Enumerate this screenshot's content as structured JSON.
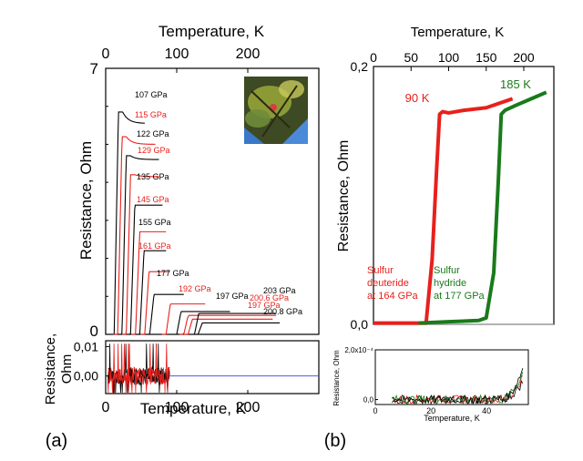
{
  "colors": {
    "black": "#000000",
    "red": "#e8201c",
    "green": "#1a7a1a",
    "blue": "#4a5fd8",
    "axis": "#000000"
  },
  "panel_labels": [
    "(a)",
    "(b)"
  ],
  "chart_data": [
    {
      "id": "a-main",
      "type": "line",
      "title": "",
      "xlabel": "Temperature, K",
      "ylabel": "Resistance, Ohm",
      "xlim": [
        0,
        300
      ],
      "ylim": [
        0,
        7
      ],
      "x_ticks": [
        0,
        100,
        200
      ],
      "y_ticks": [
        0,
        7
      ],
      "inset_label": "sample photo",
      "series": [
        {
          "name": "107 GPa",
          "label": "107 GPa",
          "color": "black",
          "tc": 12,
          "plateau": 5.55,
          "peak": 5.85,
          "tmax": 55
        },
        {
          "name": "115 GPa",
          "label": "115 GPa",
          "color": "red",
          "tc": 17,
          "plateau": 5.0,
          "peak": 5.2,
          "tmax": 70
        },
        {
          "name": "122 GPa",
          "label": "122 GPa",
          "color": "black",
          "tc": 23,
          "plateau": 4.6,
          "peak": 4.7,
          "tmax": 75
        },
        {
          "name": "129 GPa",
          "label": "129 GPa",
          "color": "red",
          "tc": 29,
          "plateau": 4.15,
          "peak": 4.2,
          "tmax": 75
        },
        {
          "name": "135 GPa",
          "label": "135 GPa",
          "color": "black",
          "tc": 35,
          "plateau": 3.4,
          "peak": 3.4,
          "tmax": 80
        },
        {
          "name": "145 GPa",
          "label": "145 GPa",
          "color": "red",
          "tc": 42,
          "plateau": 2.7,
          "peak": 2.7,
          "tmax": 85
        },
        {
          "name": "155 GPa",
          "label": "155 GPa",
          "color": "black",
          "tc": 48,
          "plateau": 2.2,
          "peak": 2.2,
          "tmax": 85
        },
        {
          "name": "161 GPa",
          "label": "161 GPa",
          "color": "red",
          "tc": 55,
          "plateau": 1.65,
          "peak": 1.65,
          "tmax": 90
        },
        {
          "name": "177 GPa",
          "label": "177 GPa",
          "color": "black",
          "tc": 62,
          "plateau": 1.05,
          "peak": 1.05,
          "tmax": 110
        },
        {
          "name": "192 GPa",
          "label": "192 GPa",
          "color": "red",
          "tc": 85,
          "plateau": 0.8,
          "peak": 0.8,
          "tmax": 140
        },
        {
          "name": "197 GPa (black)",
          "label": "197 GPa",
          "color": "black",
          "tc": 100,
          "plateau": 0.6,
          "peak": 0.6,
          "tmax": 175
        },
        {
          "name": "200.6 GPa",
          "label": "200.6 GPa",
          "color": "red",
          "tc": 110,
          "plateau": 0.5,
          "peak": 0.5,
          "tmax": 240
        },
        {
          "name": "197 GPa (red)",
          "label": "197 GPa",
          "color": "red",
          "tc": 116,
          "plateau": 0.4,
          "peak": 0.4,
          "tmax": 235
        },
        {
          "name": "203 GPa",
          "label": "203 GPa",
          "color": "black",
          "tc": 125,
          "plateau": 0.55,
          "peak": 0.55,
          "tmax": 240
        },
        {
          "name": "200.8 GPa",
          "label": "200.8 GPa",
          "color": "black",
          "tc": 130,
          "plateau": 0.3,
          "peak": 0.3,
          "tmax": 245
        }
      ]
    },
    {
      "id": "a-inset",
      "type": "line",
      "xlabel": "Temperature, K",
      "ylabel_lines": [
        "Resistance,",
        "Ohm"
      ],
      "xlim": [
        0,
        300
      ],
      "ylim": [
        -0.006,
        0.012
      ],
      "x_ticks": [
        0,
        100,
        200
      ],
      "y_ticks": [
        {
          "value": 0.0,
          "label": "0,00"
        },
        {
          "value": 0.01,
          "label": "0,01"
        }
      ],
      "zero_line_color": "blue",
      "noise_range": [
        0,
        90
      ]
    },
    {
      "id": "b-main",
      "type": "line",
      "xlabel": "Temperature, K",
      "ylabel": "Resistance, Ohm",
      "xlim": [
        0,
        240
      ],
      "ylim": [
        0,
        0.2
      ],
      "x_ticks": [
        0,
        50,
        100,
        150,
        200
      ],
      "y_ticks": [
        {
          "value": 0.0,
          "label": "0,0"
        },
        {
          "value": 0.2,
          "label": "0,2"
        }
      ],
      "series": [
        {
          "name": "Sulfur deuteride at 164 GPa",
          "color": "red",
          "tc_label": "90 K",
          "points": [
            [
              0,
              0.001
            ],
            [
              60,
              0.001
            ],
            [
              70,
              0.001
            ],
            [
              78,
              0.05
            ],
            [
              84,
              0.12
            ],
            [
              88,
              0.163
            ],
            [
              92,
              0.165
            ],
            [
              100,
              0.164
            ],
            [
              120,
              0.166
            ],
            [
              150,
              0.168
            ],
            [
              170,
              0.172
            ],
            [
              185,
              0.175
            ]
          ]
        },
        {
          "name": "Sulfur hydride at 177 GPa",
          "color": "green",
          "tc_label": "185 K",
          "points": [
            [
              60,
              0.001
            ],
            [
              100,
              0.002
            ],
            [
              140,
              0.003
            ],
            [
              150,
              0.005
            ],
            [
              160,
              0.04
            ],
            [
              166,
              0.11
            ],
            [
              170,
              0.163
            ],
            [
              175,
              0.166
            ],
            [
              190,
              0.17
            ],
            [
              210,
              0.175
            ],
            [
              230,
              0.18
            ]
          ]
        }
      ],
      "annotations": [
        {
          "text": "90 K",
          "color": "red"
        },
        {
          "text": "185 K",
          "color": "green"
        }
      ],
      "legend_red": [
        "Sulfur",
        "deuteride",
        "at 164 GPa"
      ],
      "legend_green": [
        "Sulfur",
        "hydride",
        "at 177 GPa"
      ]
    },
    {
      "id": "b-inset",
      "type": "line",
      "xlabel": "Temperature, K",
      "ylabel": "Resistance, Ohm",
      "xlim": [
        0,
        55
      ],
      "ylim": [
        -2e-05,
        0.0002
      ],
      "x_ticks": [
        0,
        20,
        40
      ],
      "y_ticks": [
        {
          "value": 0,
          "label": "0,0"
        },
        {
          "value": 0.0002,
          "label": "2,0x10⁻⁴"
        }
      ]
    }
  ]
}
